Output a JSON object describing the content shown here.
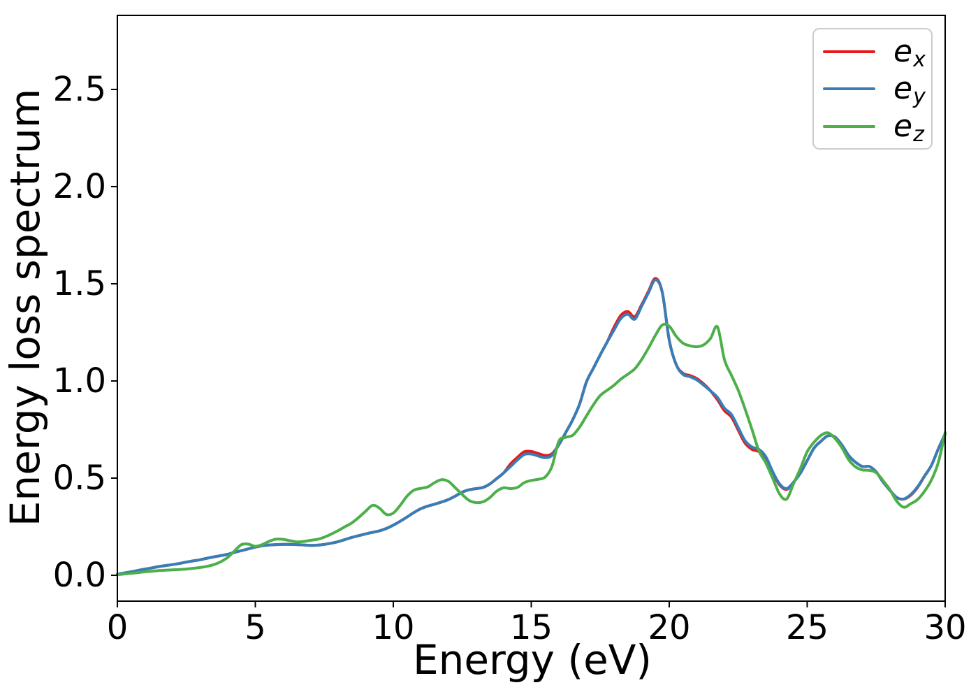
{
  "figure": {
    "background": "#ffffff",
    "axis_color": "#000000",
    "legend_border_color": "#cccccc"
  },
  "chart_data": {
    "type": "line",
    "title": "",
    "xlabel": "Energy (eV)",
    "ylabel": "Energy loss spectrum",
    "xlim": [
      0,
      30
    ],
    "ylim": [
      -0.133,
      2.881
    ],
    "xticks": [
      0,
      5,
      10,
      15,
      20,
      25,
      30
    ],
    "ytick_values": [
      0.0,
      0.5,
      1.0,
      1.5,
      2.0,
      2.5
    ],
    "ytick_labels": [
      "0.0",
      "0.5",
      "1.0",
      "1.5",
      "2.0",
      "2.5"
    ],
    "grid": false,
    "legend_position": "upper right",
    "x_start": 0,
    "x_step": 0.25,
    "series": [
      {
        "name": "e_x",
        "legend_base": "e",
        "legend_sub": "x",
        "color": "#e41a1c",
        "values": [
          0.005,
          0.012,
          0.018,
          0.025,
          0.032,
          0.038,
          0.045,
          0.05,
          0.055,
          0.061,
          0.068,
          0.074,
          0.08,
          0.088,
          0.095,
          0.101,
          0.108,
          0.118,
          0.127,
          0.136,
          0.145,
          0.152,
          0.156,
          0.158,
          0.159,
          0.159,
          0.158,
          0.156,
          0.154,
          0.155,
          0.159,
          0.165,
          0.173,
          0.184,
          0.195,
          0.204,
          0.213,
          0.221,
          0.229,
          0.241,
          0.258,
          0.278,
          0.3,
          0.323,
          0.343,
          0.356,
          0.366,
          0.377,
          0.39,
          0.408,
          0.428,
          0.44,
          0.446,
          0.452,
          0.47,
          0.498,
          0.527,
          0.573,
          0.607,
          0.636,
          0.637,
          0.627,
          0.617,
          0.625,
          0.672,
          0.735,
          0.8,
          0.88,
          0.995,
          1.065,
          1.135,
          1.2,
          1.276,
          1.338,
          1.357,
          1.33,
          1.392,
          1.462,
          1.528,
          1.455,
          1.21,
          1.085,
          1.039,
          1.028,
          1.012,
          0.984,
          0.948,
          0.903,
          0.847,
          0.815,
          0.747,
          0.68,
          0.648,
          0.636,
          0.6,
          0.528,
          0.465,
          0.442,
          0.478,
          0.525,
          0.59,
          0.655,
          0.69,
          0.718,
          0.712,
          0.672,
          0.617,
          0.582,
          0.56,
          0.56,
          0.532,
          0.48,
          0.437,
          0.4,
          0.392,
          0.412,
          0.452,
          0.51,
          0.565,
          0.65,
          0.726
        ]
      },
      {
        "name": "e_y",
        "legend_base": "e",
        "legend_sub": "y",
        "color": "#377eb8",
        "values": [
          0.005,
          0.012,
          0.018,
          0.025,
          0.032,
          0.038,
          0.045,
          0.05,
          0.055,
          0.061,
          0.068,
          0.074,
          0.08,
          0.088,
          0.095,
          0.101,
          0.108,
          0.118,
          0.127,
          0.136,
          0.145,
          0.152,
          0.156,
          0.158,
          0.159,
          0.159,
          0.158,
          0.156,
          0.154,
          0.155,
          0.159,
          0.165,
          0.173,
          0.184,
          0.195,
          0.204,
          0.213,
          0.221,
          0.229,
          0.241,
          0.258,
          0.278,
          0.3,
          0.323,
          0.343,
          0.356,
          0.366,
          0.377,
          0.39,
          0.408,
          0.428,
          0.44,
          0.446,
          0.452,
          0.47,
          0.498,
          0.527,
          0.56,
          0.594,
          0.622,
          0.624,
          0.614,
          0.605,
          0.617,
          0.672,
          0.735,
          0.8,
          0.88,
          0.995,
          1.065,
          1.135,
          1.2,
          1.262,
          1.322,
          1.343,
          1.318,
          1.385,
          1.455,
          1.52,
          1.455,
          1.21,
          1.085,
          1.033,
          1.022,
          1.005,
          0.978,
          0.948,
          0.915,
          0.86,
          0.828,
          0.76,
          0.692,
          0.66,
          0.648,
          0.61,
          0.533,
          0.47,
          0.446,
          0.478,
          0.525,
          0.59,
          0.655,
          0.69,
          0.718,
          0.712,
          0.672,
          0.617,
          0.582,
          0.56,
          0.56,
          0.532,
          0.48,
          0.437,
          0.4,
          0.393,
          0.415,
          0.455,
          0.51,
          0.565,
          0.65,
          0.728
        ]
      },
      {
        "name": "e_z",
        "legend_base": "e",
        "legend_sub": "z",
        "color": "#4daf4a",
        "values": [
          0.003,
          0.007,
          0.01,
          0.014,
          0.018,
          0.021,
          0.024,
          0.026,
          0.028,
          0.03,
          0.032,
          0.036,
          0.04,
          0.046,
          0.055,
          0.07,
          0.092,
          0.126,
          0.158,
          0.16,
          0.149,
          0.158,
          0.175,
          0.186,
          0.185,
          0.178,
          0.172,
          0.174,
          0.18,
          0.185,
          0.196,
          0.212,
          0.23,
          0.25,
          0.27,
          0.298,
          0.33,
          0.36,
          0.345,
          0.313,
          0.32,
          0.36,
          0.408,
          0.438,
          0.447,
          0.455,
          0.477,
          0.492,
          0.483,
          0.45,
          0.415,
          0.385,
          0.374,
          0.378,
          0.4,
          0.433,
          0.45,
          0.446,
          0.452,
          0.477,
          0.488,
          0.494,
          0.505,
          0.56,
          0.69,
          0.71,
          0.72,
          0.762,
          0.82,
          0.877,
          0.925,
          0.952,
          0.978,
          1.01,
          1.035,
          1.062,
          1.11,
          1.17,
          1.235,
          1.288,
          1.282,
          1.23,
          1.194,
          1.181,
          1.176,
          1.186,
          1.22,
          1.278,
          1.11,
          1.03,
          0.952,
          0.855,
          0.75,
          0.64,
          0.578,
          0.5,
          0.418,
          0.392,
          0.47,
          0.548,
          0.636,
          0.685,
          0.72,
          0.733,
          0.705,
          0.658,
          0.595,
          0.558,
          0.542,
          0.54,
          0.528,
          0.487,
          0.44,
          0.38,
          0.35,
          0.368,
          0.39,
          0.432,
          0.49,
          0.58,
          0.735
        ]
      }
    ]
  }
}
